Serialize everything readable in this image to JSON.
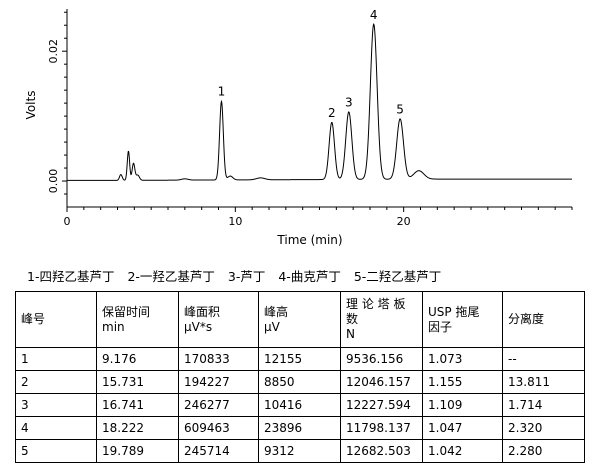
{
  "chart_data": {
    "type": "line",
    "xlabel": "Time (min)",
    "ylabel": "Volts",
    "xlim": [
      0,
      30
    ],
    "ylim": [
      -0.004,
      0.0265
    ],
    "xticks": [
      0,
      10,
      20
    ],
    "xtick_labels": [
      "0",
      "10",
      "20"
    ],
    "yticks": [
      0.0,
      0.02
    ],
    "ytick_labels": [
      "0.00",
      "0.02"
    ],
    "baseline": 0.0001,
    "baseline_points": [
      [
        0,
        0.0001
      ],
      [
        3.1,
        0.0001
      ],
      [
        22,
        0.0003
      ],
      [
        30,
        0.0003
      ]
    ],
    "peaks": [
      {
        "t": 3.2,
        "h": 0.0009,
        "w": 0.08
      },
      {
        "t": 3.65,
        "h": 0.0045,
        "w": 0.07
      },
      {
        "t": 3.95,
        "h": 0.0026,
        "w": 0.08
      },
      {
        "t": 4.2,
        "h": 0.0008,
        "w": 0.1
      },
      {
        "t": 7.0,
        "h": 0.0002,
        "w": 0.2
      },
      {
        "t": 9.176,
        "h": 0.0121,
        "w": 0.11
      },
      {
        "t": 9.7,
        "h": 0.0006,
        "w": 0.15
      },
      {
        "t": 11.5,
        "h": 0.0003,
        "w": 0.25
      },
      {
        "t": 15.731,
        "h": 0.0088,
        "w": 0.16
      },
      {
        "t": 16.741,
        "h": 0.0104,
        "w": 0.18
      },
      {
        "t": 18.222,
        "h": 0.0239,
        "w": 0.2
      },
      {
        "t": 19.789,
        "h": 0.0093,
        "w": 0.2
      },
      {
        "t": 20.9,
        "h": 0.0013,
        "w": 0.3
      }
    ],
    "peak_labels": [
      {
        "label": "1",
        "t": 9.176,
        "h": 0.0121
      },
      {
        "label": "2",
        "t": 15.731,
        "h": 0.0088
      },
      {
        "label": "3",
        "t": 16.741,
        "h": 0.0104
      },
      {
        "label": "4",
        "t": 18.222,
        "h": 0.0239
      },
      {
        "label": "5",
        "t": 19.789,
        "h": 0.0093
      }
    ]
  },
  "legend": {
    "items": [
      "1-四羟乙基芦丁",
      "2-一羟乙基芦丁",
      "3-芦丁",
      "4-曲克芦丁",
      "5-二羟乙基芦丁"
    ]
  },
  "table": {
    "headers": [
      [
        "峰号"
      ],
      [
        "保留时间",
        "min"
      ],
      [
        "峰面积",
        "μV*s"
      ],
      [
        "峰高",
        "μV"
      ],
      [
        "理 论 塔 板",
        "数",
        "N"
      ],
      [
        "USP 拖尾",
        "因子"
      ],
      [
        "分离度"
      ]
    ],
    "rows": [
      [
        "1",
        "9.176",
        "170833",
        "12155",
        "9536.156",
        "1.073",
        "--"
      ],
      [
        "2",
        "15.731",
        "194227",
        "8850",
        "12046.157",
        "1.155",
        "13.811"
      ],
      [
        "3",
        "16.741",
        "246277",
        "10416",
        "12227.594",
        "1.109",
        "1.714"
      ],
      [
        "4",
        "18.222",
        "609463",
        "23896",
        "11798.137",
        "1.047",
        "2.320"
      ],
      [
        "5",
        "19.789",
        "245714",
        "9312",
        "12682.503",
        "1.042",
        "2.280"
      ]
    ]
  }
}
